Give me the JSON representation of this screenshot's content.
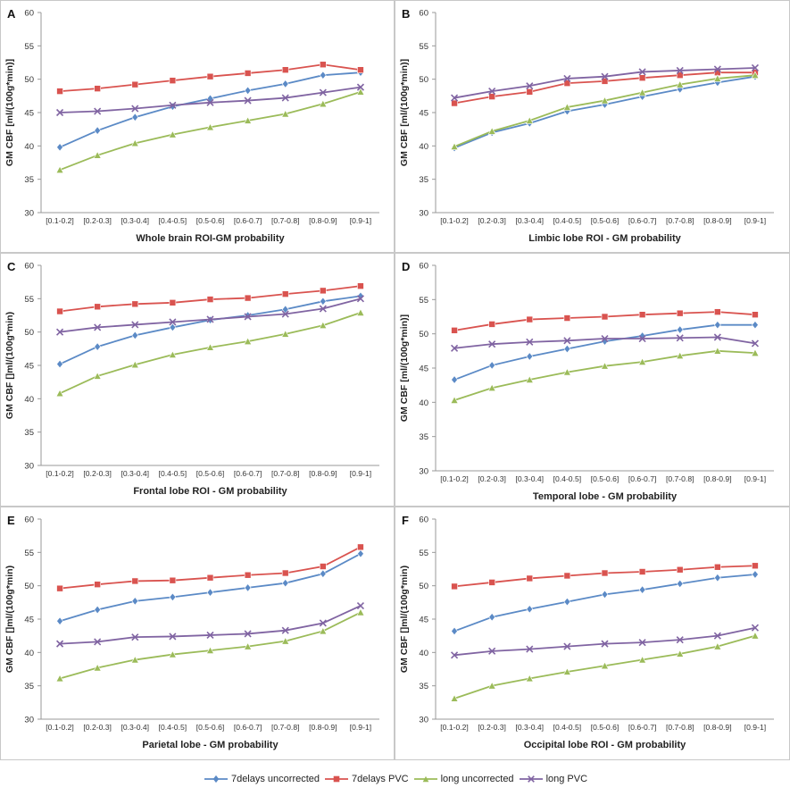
{
  "colors": {
    "seven_uncorrected": "#5B8AC6",
    "seven_pvc": "#D9534F",
    "long_uncorrected": "#9BBB59",
    "long_pvc": "#8064A2"
  },
  "legend": [
    {
      "name": "7delays uncorrected",
      "color": "#5B8AC6",
      "marker": "diamond"
    },
    {
      "name": "7delays PVC",
      "color": "#D9534F",
      "marker": "square"
    },
    {
      "name": "long uncorrected",
      "color": "#9BBB59",
      "marker": "triangle"
    },
    {
      "name": "long PVC",
      "color": "#8064A2",
      "marker": "x"
    }
  ],
  "chart_data": [
    {
      "type": "line",
      "panel": "A",
      "title": "",
      "xlabel": "Whole brain ROI-GM probability",
      "ylabel": "GM CBF [ml/(100g*min)]",
      "ylim": [
        30,
        60
      ],
      "yticks": [
        30,
        35,
        40,
        45,
        50,
        55,
        60
      ],
      "categories": [
        "[0.1-0.2]",
        "[0.2-0.3]",
        "[0.3-0.4]",
        "[0.4-0.5]",
        "[0.5-0.6]",
        "[0.6-0.7]",
        "[0.7-0.8]",
        "[0.8-0.9]",
        "[0.9-1]"
      ],
      "series": [
        {
          "name": "7delays uncorrected",
          "values": [
            39.8,
            42.3,
            44.3,
            45.9,
            47.1,
            48.3,
            49.3,
            50.6,
            51.0
          ]
        },
        {
          "name": "7delays PVC",
          "values": [
            48.2,
            48.6,
            49.2,
            49.8,
            50.4,
            50.9,
            51.4,
            52.2,
            51.4
          ]
        },
        {
          "name": "long uncorrected",
          "values": [
            36.4,
            38.6,
            40.4,
            41.7,
            42.8,
            43.8,
            44.8,
            46.3,
            48.1
          ]
        },
        {
          "name": "long PVC",
          "values": [
            45.0,
            45.2,
            45.6,
            46.1,
            46.5,
            46.8,
            47.2,
            48.0,
            48.8
          ]
        }
      ]
    },
    {
      "type": "line",
      "panel": "B",
      "title": "",
      "xlabel": "Limbic lobe ROI - GM probability",
      "ylabel": "GM CBF [ml/(100g*min)]",
      "ylim": [
        30,
        60
      ],
      "yticks": [
        30,
        35,
        40,
        45,
        50,
        55,
        60
      ],
      "categories": [
        "[0.1-0.2]",
        "[0.2-0.3]",
        "[0.3-0.4]",
        "[0.4-0.5]",
        "[0.5-0.6]",
        "[0.6-0.7]",
        "[0.7-0.8]",
        "[0.8-0.9]",
        "[0.9-1]"
      ],
      "series": [
        {
          "name": "7delays uncorrected",
          "values": [
            39.7,
            42.0,
            43.4,
            45.2,
            46.2,
            47.4,
            48.5,
            49.5,
            50.4
          ]
        },
        {
          "name": "7delays PVC",
          "values": [
            46.4,
            47.4,
            48.1,
            49.4,
            49.7,
            50.2,
            50.6,
            51.0,
            51.0
          ]
        },
        {
          "name": "long uncorrected",
          "values": [
            39.9,
            42.2,
            43.8,
            45.8,
            46.8,
            48.0,
            49.2,
            50.1,
            50.6
          ]
        },
        {
          "name": "long PVC",
          "values": [
            47.2,
            48.2,
            49.0,
            50.1,
            50.4,
            51.1,
            51.3,
            51.5,
            51.7
          ]
        }
      ]
    },
    {
      "type": "line",
      "panel": "C",
      "title": "",
      "xlabel": "Frontal lobe ROI - GM probability",
      "ylabel": "GM CBF []ml/(100g*min)",
      "ylim": [
        30,
        60
      ],
      "yticks": [
        30,
        35,
        40,
        45,
        50,
        55,
        60
      ],
      "categories": [
        "[0.1-0.2]",
        "[0.2-0.3]",
        "[0.3-0.4]",
        "[0.4-0.5]",
        "[0.5-0.6]",
        "[0.6-0.7]",
        "[0.7-0.8]",
        "[0.8-0.9]",
        "[0.9-1]"
      ],
      "series": [
        {
          "name": "7delays uncorrected",
          "values": [
            45.2,
            47.8,
            49.5,
            50.7,
            51.8,
            52.5,
            53.4,
            54.6,
            55.4
          ]
        },
        {
          "name": "7delays PVC",
          "values": [
            53.1,
            53.8,
            54.2,
            54.4,
            54.9,
            55.1,
            55.7,
            56.2,
            56.9
          ]
        },
        {
          "name": "long uncorrected",
          "values": [
            40.8,
            43.4,
            45.1,
            46.6,
            47.7,
            48.6,
            49.7,
            51.0,
            52.9
          ]
        },
        {
          "name": "long PVC",
          "values": [
            50.0,
            50.7,
            51.1,
            51.5,
            51.9,
            52.3,
            52.7,
            53.5,
            55.0
          ]
        }
      ]
    },
    {
      "type": "line",
      "panel": "D",
      "title": "",
      "xlabel": "Temporal lobe - GM probability",
      "ylabel": "GM CBF [ml/(100g*min)]",
      "ylim": [
        30,
        60
      ],
      "yticks": [
        30,
        35,
        40,
        45,
        50,
        55,
        60
      ],
      "categories": [
        "[0.1-0.2]",
        "[0.2-0.3]",
        "[0.3-0.4]",
        "[0.4-0.5]",
        "[0.5-0.6]",
        "[0.6-0.7]",
        "[0.7-0.8]",
        "[0.8-0.9]",
        "[0.9-1]"
      ],
      "series": [
        {
          "name": "7delays uncorrected",
          "values": [
            43.3,
            45.4,
            46.7,
            47.8,
            48.9,
            49.7,
            50.6,
            51.3,
            51.3
          ]
        },
        {
          "name": "7delays PVC",
          "values": [
            50.5,
            51.4,
            52.1,
            52.3,
            52.5,
            52.8,
            53.0,
            53.2,
            52.8
          ]
        },
        {
          "name": "long uncorrected",
          "values": [
            40.3,
            42.1,
            43.3,
            44.4,
            45.3,
            45.9,
            46.8,
            47.5,
            47.2
          ]
        },
        {
          "name": "long PVC",
          "values": [
            47.9,
            48.5,
            48.8,
            49.0,
            49.3,
            49.3,
            49.4,
            49.5,
            48.6
          ]
        }
      ]
    },
    {
      "type": "line",
      "panel": "E",
      "title": "",
      "xlabel": "Parietal lobe - GM probability",
      "ylabel": "GM CBF []ml/(100g*min)",
      "ylim": [
        30,
        60
      ],
      "yticks": [
        30,
        35,
        40,
        45,
        50,
        55,
        60
      ],
      "categories": [
        "[0.1-0.2]",
        "[0.2-0.3]",
        "[0.3-0.4]",
        "[0.4-0.5]",
        "[0.5-0.6]",
        "[0.6-0.7]",
        "[0.7-0.8]",
        "[0.8-0.9]",
        "[0.9-1]"
      ],
      "series": [
        {
          "name": "7delays uncorrected",
          "values": [
            44.7,
            46.4,
            47.7,
            48.3,
            49.0,
            49.7,
            50.4,
            51.8,
            54.8
          ]
        },
        {
          "name": "7delays PVC",
          "values": [
            49.6,
            50.2,
            50.7,
            50.8,
            51.2,
            51.6,
            51.9,
            52.9,
            55.8
          ]
        },
        {
          "name": "long uncorrected",
          "values": [
            36.1,
            37.7,
            38.9,
            39.7,
            40.3,
            40.9,
            41.7,
            43.2,
            46.0
          ]
        },
        {
          "name": "long PVC",
          "values": [
            41.3,
            41.6,
            42.3,
            42.4,
            42.6,
            42.8,
            43.3,
            44.4,
            47.0
          ]
        }
      ]
    },
    {
      "type": "line",
      "panel": "F",
      "title": "",
      "xlabel": "Occipital lobe ROI - GM probability",
      "ylabel": "GM CBF []ml/(100g*min)",
      "ylim": [
        30,
        60
      ],
      "yticks": [
        30,
        35,
        40,
        45,
        50,
        55,
        60
      ],
      "categories": [
        "[0.1-0.2]",
        "[0.2-0.3]",
        "[0.3-0.4]",
        "[0.4-0.5]",
        "[0.5-0.6]",
        "[0.6-0.7]",
        "[0.7-0.8]",
        "[0.8-0.9]",
        "[0.9-1]"
      ],
      "series": [
        {
          "name": "7delays uncorrected",
          "values": [
            43.2,
            45.3,
            46.5,
            47.6,
            48.7,
            49.4,
            50.3,
            51.2,
            51.7
          ]
        },
        {
          "name": "7delays PVC",
          "values": [
            49.9,
            50.5,
            51.1,
            51.5,
            51.9,
            52.1,
            52.4,
            52.8,
            53.0
          ]
        },
        {
          "name": "long uncorrected",
          "values": [
            33.1,
            35.0,
            36.1,
            37.1,
            38.0,
            38.9,
            39.8,
            40.9,
            42.5
          ]
        },
        {
          "name": "long PVC",
          "values": [
            39.6,
            40.2,
            40.5,
            40.9,
            41.3,
            41.5,
            41.9,
            42.5,
            43.7
          ]
        }
      ]
    }
  ]
}
